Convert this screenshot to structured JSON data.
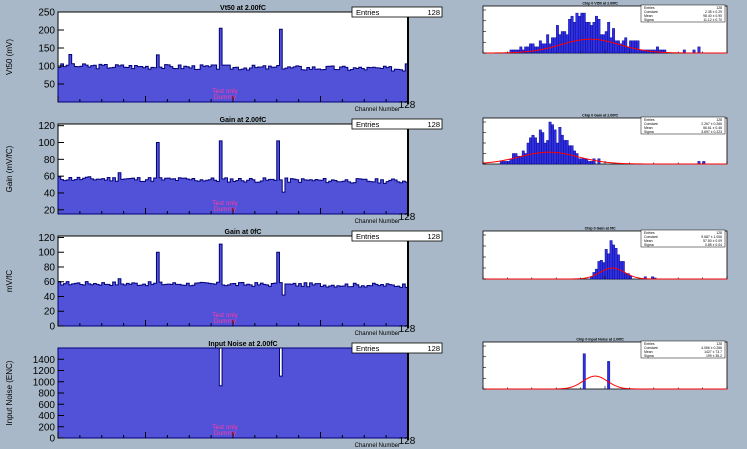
{
  "colors": {
    "background": "#a9b8c8",
    "frame": "#ffffff",
    "hist_fill": "#5252d8",
    "hist_line": "#00007a",
    "fit": "#ff0000",
    "watermark": "#ff3ca0",
    "axis": "#000000"
  },
  "watermark": {
    "line1": "Test only",
    "line2": "Dummy"
  },
  "chart_data": [
    {
      "type": "bar",
      "title": "Vt50 at 2.00fC",
      "ylabel": "Vt50 (mV)",
      "xlabel": "Channel Number",
      "ylim": [
        0,
        250
      ],
      "yticks": [
        50,
        100,
        150,
        200,
        250
      ],
      "ytick_labels": [
        "50",
        "100",
        "150",
        "200",
        "250"
      ],
      "x_end_label": "128",
      "stats": {
        "label": "Entries",
        "value": "128"
      },
      "base": 100,
      "amplitude": 7,
      "drift": -8,
      "seed": 3,
      "spikes": [
        [
          4,
          132
        ],
        [
          36,
          131
        ],
        [
          59,
          205
        ],
        [
          81,
          202
        ],
        [
          127,
          106
        ]
      ],
      "dips": []
    },
    {
      "type": "bar",
      "title": "Gain at 2.00fC",
      "ylabel": "Gain (mV/fC)",
      "xlabel": "Channel Number",
      "ylim": [
        15,
        122
      ],
      "yticks": [
        20,
        40,
        60,
        80,
        100,
        120
      ],
      "ytick_labels": [
        "20",
        "40",
        "60",
        "80",
        "100",
        "120"
      ],
      "x_end_label": "128",
      "stats": {
        "label": "Entries",
        "value": "128"
      },
      "base": 57,
      "amplitude": 2.8,
      "drift": -3,
      "seed": 11,
      "spikes": [
        [
          36,
          100
        ],
        [
          59,
          102
        ],
        [
          80,
          102
        ],
        [
          22,
          64
        ]
      ],
      "dips": [
        [
          82,
          41
        ]
      ]
    },
    {
      "type": "bar",
      "title": "Gain at 0fC",
      "ylabel": "mV/fC",
      "xlabel": "Channel Number",
      "ylim": [
        0,
        122
      ],
      "yticks": [
        0,
        20,
        40,
        60,
        80,
        100,
        120
      ],
      "ytick_labels": [
        "0",
        "20",
        "40",
        "60",
        "80",
        "100",
        "120"
      ],
      "x_end_label": "128",
      "stats": {
        "label": "Entries",
        "value": "128"
      },
      "base": 58,
      "amplitude": 2.8,
      "drift": -3,
      "seed": 17,
      "spikes": [
        [
          36,
          100
        ],
        [
          59,
          111
        ],
        [
          80,
          100
        ],
        [
          22,
          64
        ]
      ],
      "dips": [
        [
          82,
          42
        ]
      ]
    },
    {
      "type": "bar",
      "title": "Input Noise at 2.00fC",
      "ylabel": "Input Noise (ENC)",
      "xlabel": "Channel Number",
      "ylim": [
        0,
        1600
      ],
      "yticks": [
        0,
        200,
        400,
        600,
        800,
        1000,
        1200,
        1400
      ],
      "ytick_labels": [
        "0",
        "200",
        "400",
        "600",
        "800",
        "1000",
        "1200",
        "1400"
      ],
      "x_end_label": "128",
      "stats": {
        "label": "Entries",
        "value": "128"
      },
      "base": 1600,
      "amplitude": 0,
      "drift": 0,
      "seed": 5,
      "spikes": [],
      "dips": [
        [
          59,
          930
        ],
        [
          81,
          1100
        ]
      ]
    }
  ],
  "side_charts": [
    {
      "type": "bar",
      "title": "Chip 0 Vt50 at 2.00fC",
      "stats": [
        [
          "Entries",
          "128"
        ],
        [
          "Constant",
          "2.35 ± 0.29"
        ],
        [
          "Mean",
          "98.40 ± 0.90"
        ],
        [
          "Sigma",
          "11.12 ± 0.70"
        ]
      ],
      "center": 0.42,
      "width": 0.13,
      "peak": 11,
      "ymax": 14,
      "seed": 21,
      "fit": {
        "center": 0.44,
        "sigma": 0.12,
        "height": 4.5
      },
      "outliers": [
        0.7,
        0.71,
        0.74,
        0.82,
        0.86,
        0.88
      ]
    },
    {
      "type": "bar",
      "title": "Chip 0 Gain at 2.00fC",
      "stats": [
        [
          "Entries",
          "128"
        ],
        [
          "Constant",
          "2.267 ± 0.266"
        ],
        [
          "Mean",
          "56.61 ± 0.46"
        ],
        [
          "Sigma",
          "3.697 ± 0.223"
        ]
      ],
      "center": 0.26,
      "width": 0.08,
      "peak": 13,
      "ymax": 16,
      "seed": 33,
      "fit": {
        "center": 0.27,
        "sigma": 0.12,
        "height": 4.5
      },
      "outliers": [
        0.45,
        0.47,
        0.88,
        0.9
      ]
    },
    {
      "type": "bar",
      "title": "Chip 0 Gain at 0fC",
      "stats": [
        [
          "Entries",
          "128"
        ],
        [
          "Constant",
          "9.687 ± 1.006"
        ],
        [
          "Mean",
          "57.50 ± 0.09"
        ],
        [
          "Sigma",
          "0.85 ± 0.04"
        ]
      ],
      "center": 0.52,
      "width": 0.035,
      "peak": 36,
      "ymax": 40,
      "seed": 41,
      "fit": {
        "center": 0.53,
        "sigma": 0.05,
        "height": 10
      },
      "outliers": [
        0.66,
        0.69,
        0.7
      ]
    },
    {
      "type": "bar",
      "title": "Chip 0 Input Noise at 2.00fC",
      "stats": [
        [
          "Entries",
          "128"
        ],
        [
          "Constant",
          "4.066 ± 0.266"
        ],
        [
          "Mean",
          "1427 ± 73.7"
        ],
        [
          "Sigma",
          "199 ± 35.2"
        ]
      ],
      "center": 0.45,
      "width": 0.0,
      "peak": 0,
      "ymax": 14,
      "seed": 7,
      "fit": {
        "center": 0.46,
        "sigma": 0.05,
        "height": 4.2
      },
      "outliers": [],
      "bars": [
        [
          0.41,
          11.5
        ],
        [
          0.51,
          9
        ]
      ]
    }
  ]
}
